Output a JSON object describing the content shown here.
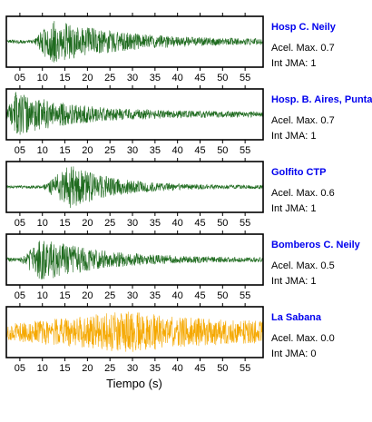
{
  "chart_data": {
    "type": "line",
    "xlabel": "Tiempo (s)",
    "xlim": [
      2,
      59
    ],
    "tick_values": [
      5,
      10,
      15,
      20,
      25,
      30,
      35,
      40,
      45,
      50,
      55
    ],
    "tick_labels": [
      "05",
      "10",
      "15",
      "20",
      "25",
      "30",
      "35",
      "40",
      "45",
      "50",
      "55"
    ],
    "panels": [
      {
        "station": "Hosp C. Neily",
        "acel": "Acel. Max. 0.7",
        "jma": "Int JMA: 1",
        "color": "#1f6b1f",
        "onset": 8,
        "peak": 12,
        "amplitude": 0.95,
        "decay": 16,
        "noise": 0.08,
        "seed": 3
      },
      {
        "station": "Hosp. B. Aires, Puntare",
        "acel": "Acel. Max. 0.7",
        "jma": "Int JMA: 1",
        "color": "#1f6b1f",
        "onset": 2,
        "peak": 4,
        "amplitude": 0.95,
        "decay": 14,
        "noise": 0.1,
        "seed": 11
      },
      {
        "station": "Golfito CTP",
        "acel": "Acel. Max. 0.6",
        "jma": "Int JMA: 1",
        "color": "#1f6b1f",
        "onset": 10,
        "peak": 16,
        "amplitude": 0.95,
        "decay": 10,
        "noise": 0.06,
        "seed": 23
      },
      {
        "station": "Bomberos C. Neily",
        "acel": "Acel. Max. 0.5",
        "jma": "Int JMA: 1",
        "color": "#1f6b1f",
        "onset": 5,
        "peak": 10,
        "amplitude": 0.95,
        "decay": 13,
        "noise": 0.08,
        "seed": 37
      },
      {
        "station": "La Sabana",
        "acel": "Acel. Max. 0.0",
        "jma": "Int JMA: 0",
        "color": "#f5a800",
        "onset": 2,
        "peak": 29,
        "amplitude": 0.9,
        "decay": 20,
        "noise": 0.35,
        "seed": 51
      }
    ]
  }
}
